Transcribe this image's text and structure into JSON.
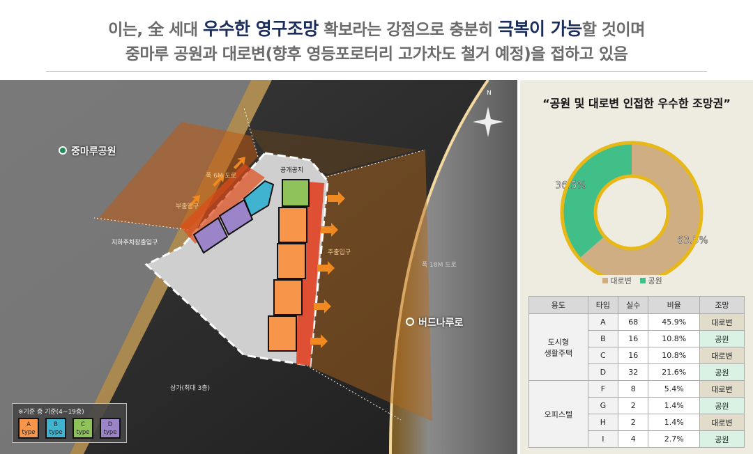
{
  "header": {
    "line1": [
      {
        "text": "이는, 全 세대 ",
        "em": false
      },
      {
        "text": "우수한 영구조망",
        "em": true
      },
      {
        "text": " 확보라는 강점으로 충분히 ",
        "em": false
      },
      {
        "text": "극복이 가능",
        "em": true
      },
      {
        "text": "할 것이며",
        "em": false
      }
    ],
    "line2": "중마루 공원과 대로변(향후 영등포로터리 고가차도 철거 예정)을 접하고 있음"
  },
  "map": {
    "labels": {
      "park": "중마루공원",
      "road": "버드나루로",
      "north": "N",
      "road6": "폭 6M 도로",
      "road18": "폭 18M 도로",
      "sub_entrance": "부출입구",
      "main_entrance": "주출입구",
      "parking_entrance": "지하주차장출입구",
      "open_space": "공개공지",
      "retail": "상가(최대 3층)"
    },
    "legend": {
      "title": "※기준 층 기준(4~19층)",
      "items": [
        {
          "label": "A",
          "sub": "type",
          "color": "#f7954a"
        },
        {
          "label": "B",
          "sub": "type",
          "color": "#3fb3d0"
        },
        {
          "label": "C",
          "sub": "type",
          "color": "#8fc25a"
        },
        {
          "label": "D",
          "sub": "type",
          "color": "#9b84c8"
        }
      ]
    },
    "colors": {
      "park_pin": "#1f8a5a",
      "road_pin": "#9a7a40"
    }
  },
  "panel": {
    "title": "“공원 및 대로변 인접한 우수한 조망권”",
    "chart_data": {
      "type": "pie",
      "donut": true,
      "slices": [
        {
          "name": "대로변",
          "value": 63.5,
          "label": "63.5%",
          "color": "#cfae84"
        },
        {
          "name": "공원",
          "value": 36.5,
          "label": "36.5%",
          "color": "#41bf88"
        }
      ],
      "ring_color": "#e8b818",
      "legend_placement": "bottom"
    },
    "table": {
      "headers": [
        "용도",
        "타입",
        "실수",
        "비율",
        "조망"
      ],
      "groups": [
        {
          "use": "도시형\n생활주택",
          "rows": [
            [
              "A",
              "68",
              "45.9%",
              "대로변"
            ],
            [
              "B",
              "16",
              "10.8%",
              "공원"
            ],
            [
              "C",
              "16",
              "10.8%",
              "대로변"
            ],
            [
              "D",
              "32",
              "21.6%",
              "공원"
            ]
          ]
        },
        {
          "use": "오피스텔",
          "rows": [
            [
              "F",
              "8",
              "5.4%",
              "대로변"
            ],
            [
              "G",
              "2",
              "1.4%",
              "공원"
            ],
            [
              "H",
              "2",
              "1.4%",
              "대로변"
            ],
            [
              "I",
              "4",
              "2.7%",
              "공원"
            ]
          ]
        }
      ]
    }
  }
}
